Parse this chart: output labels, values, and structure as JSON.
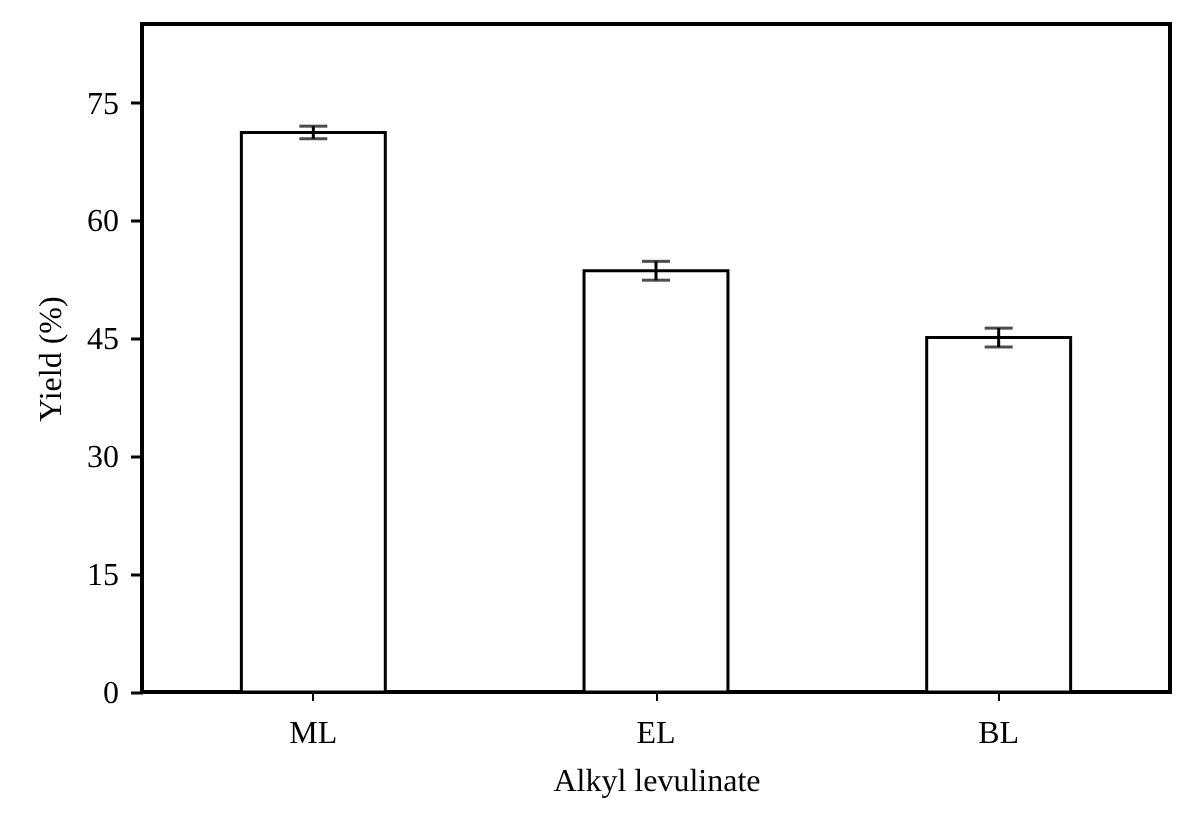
{
  "chart_data": {
    "type": "bar",
    "xlabel": "Alkyl levulinate",
    "ylabel": "Yield (%)",
    "categories": [
      "ML",
      "EL",
      "BL"
    ],
    "series": [
      {
        "color": "#ffffff",
        "values": [
          71.2,
          53.6,
          45.1
        ],
        "errors": [
          0.8,
          1.2,
          1.2
        ]
      }
    ],
    "ylim": [
      0,
      85
    ],
    "yticks": [
      0,
      15,
      30,
      45,
      60,
      75
    ],
    "grid": false
  }
}
